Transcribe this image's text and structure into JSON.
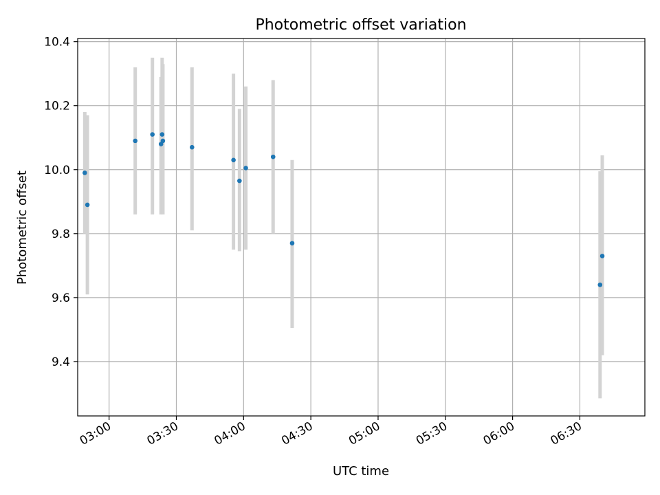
{
  "chart_data": {
    "type": "scatter",
    "title": "Photometric offset variation",
    "xlabel": "UTC time",
    "ylabel": "Photometric offset",
    "x_axis": {
      "kind": "time",
      "range": [
        "02:46",
        "06:59"
      ],
      "ticks": [
        "03:00",
        "03:30",
        "04:00",
        "04:30",
        "05:00",
        "05:30",
        "06:00",
        "06:30"
      ]
    },
    "y_axis": {
      "range": [
        9.23,
        10.41
      ],
      "ticks": [
        9.4,
        9.6,
        9.8,
        10.0,
        10.2,
        10.4
      ]
    },
    "grid": true,
    "legend": "none",
    "error_bar_color": "#d3d3d3",
    "marker_color": "#1f77b4",
    "points": [
      {
        "time": "02:49:10",
        "y": 9.99,
        "y_low": 9.8,
        "y_high": 10.18
      },
      {
        "time": "02:50:20",
        "y": 9.89,
        "y_low": 9.61,
        "y_high": 10.17
      },
      {
        "time": "03:11:40",
        "y": 10.09,
        "y_low": 9.86,
        "y_high": 10.32
      },
      {
        "time": "03:19:20",
        "y": 10.11,
        "y_low": 9.86,
        "y_high": 10.35
      },
      {
        "time": "03:23:10",
        "y": 10.08,
        "y_low": 9.86,
        "y_high": 10.29
      },
      {
        "time": "03:23:40",
        "y": 10.11,
        "y_low": 9.87,
        "y_high": 10.35
      },
      {
        "time": "03:24:00",
        "y": 10.09,
        "y_low": 9.86,
        "y_high": 10.33
      },
      {
        "time": "03:37:00",
        "y": 10.07,
        "y_low": 9.81,
        "y_high": 10.32
      },
      {
        "time": "03:55:30",
        "y": 10.03,
        "y_low": 9.75,
        "y_high": 10.3
      },
      {
        "time": "03:58:10",
        "y": 9.965,
        "y_low": 9.745,
        "y_high": 10.19
      },
      {
        "time": "04:01:00",
        "y": 10.005,
        "y_low": 9.75,
        "y_high": 10.26
      },
      {
        "time": "04:13:10",
        "y": 10.04,
        "y_low": 9.8,
        "y_high": 10.28
      },
      {
        "time": "04:21:40",
        "y": 9.77,
        "y_low": 9.505,
        "y_high": 10.03
      },
      {
        "time": "06:39:00",
        "y": 9.64,
        "y_low": 9.285,
        "y_high": 9.995
      },
      {
        "time": "06:40:00",
        "y": 9.73,
        "y_low": 9.42,
        "y_high": 10.045
      }
    ]
  }
}
